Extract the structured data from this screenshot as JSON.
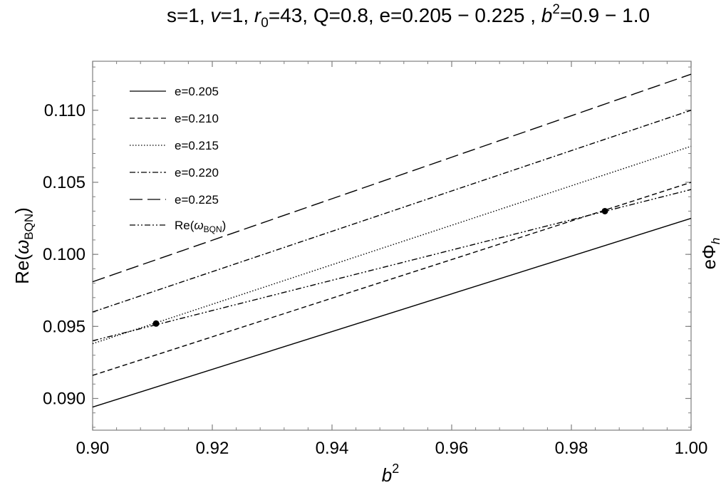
{
  "chart_data": {
    "type": "line",
    "title_parts": {
      "s": "s=1, ",
      "v_sym": "v",
      "v_val": "=1, ",
      "r_sym": "r",
      "r_sub": "0",
      "r_val": "=43, Q=0.8, e=0.205 − 0.225 , ",
      "b_sym": "b",
      "b_sup": "2",
      "b_val": "=0.9 − 1.0"
    },
    "xlabel": {
      "base": "b",
      "sup": "2"
    },
    "ylabel": {
      "prefix": "Re(",
      "omega": "ω",
      "sub": "BQN",
      "suffix": ")"
    },
    "ylabel_right": {
      "base": "eΦ",
      "sub": "h"
    },
    "xlim": [
      0.9,
      1.0
    ],
    "ylim": [
      0.0878,
      0.1134
    ],
    "x_ticks": [
      {
        "value": 0.9,
        "label": "0.90"
      },
      {
        "value": 0.92,
        "label": "0.92"
      },
      {
        "value": 0.94,
        "label": "0.94"
      },
      {
        "value": 0.96,
        "label": "0.96"
      },
      {
        "value": 0.98,
        "label": "0.98"
      },
      {
        "value": 1.0,
        "label": "1.00"
      }
    ],
    "y_ticks": [
      {
        "value": 0.09,
        "label": "0.090"
      },
      {
        "value": 0.095,
        "label": "0.095"
      },
      {
        "value": 0.1,
        "label": "0.100"
      },
      {
        "value": 0.105,
        "label": "0.105"
      },
      {
        "value": 0.11,
        "label": "0.110"
      }
    ],
    "grid": false,
    "legend_position": "top-left",
    "series": [
      {
        "name": "e=0.205",
        "style": "solid",
        "x": [
          0.9,
          1.0
        ],
        "y": [
          0.0894,
          0.1025
        ]
      },
      {
        "name": "e=0.210",
        "style": "dashed",
        "x": [
          0.9,
          1.0
        ],
        "y": [
          0.0916,
          0.105
        ]
      },
      {
        "name": "e=0.215",
        "style": "dotted",
        "x": [
          0.9,
          1.0
        ],
        "y": [
          0.0938,
          0.1075
        ]
      },
      {
        "name": "e=0.220",
        "style": "dashdot",
        "x": [
          0.9,
          1.0
        ],
        "y": [
          0.096,
          0.11
        ]
      },
      {
        "name": "e=0.225",
        "style": "longdash",
        "x": [
          0.9,
          1.0
        ],
        "y": [
          0.0981,
          0.1125
        ]
      },
      {
        "name_prefix": "Re(",
        "name_omega": "ω",
        "name_sub": "BQN",
        "name_suffix": ")",
        "style": "dashdotdot",
        "x": [
          0.9,
          1.0
        ],
        "y": [
          0.094,
          0.1045
        ]
      }
    ],
    "markers": [
      {
        "x": 0.9106,
        "y": 0.0952
      },
      {
        "x": 0.9856,
        "y": 0.103
      }
    ],
    "colors": {
      "line": "#000000",
      "frame": "#7f7f7f",
      "background": "#ffffff"
    }
  }
}
